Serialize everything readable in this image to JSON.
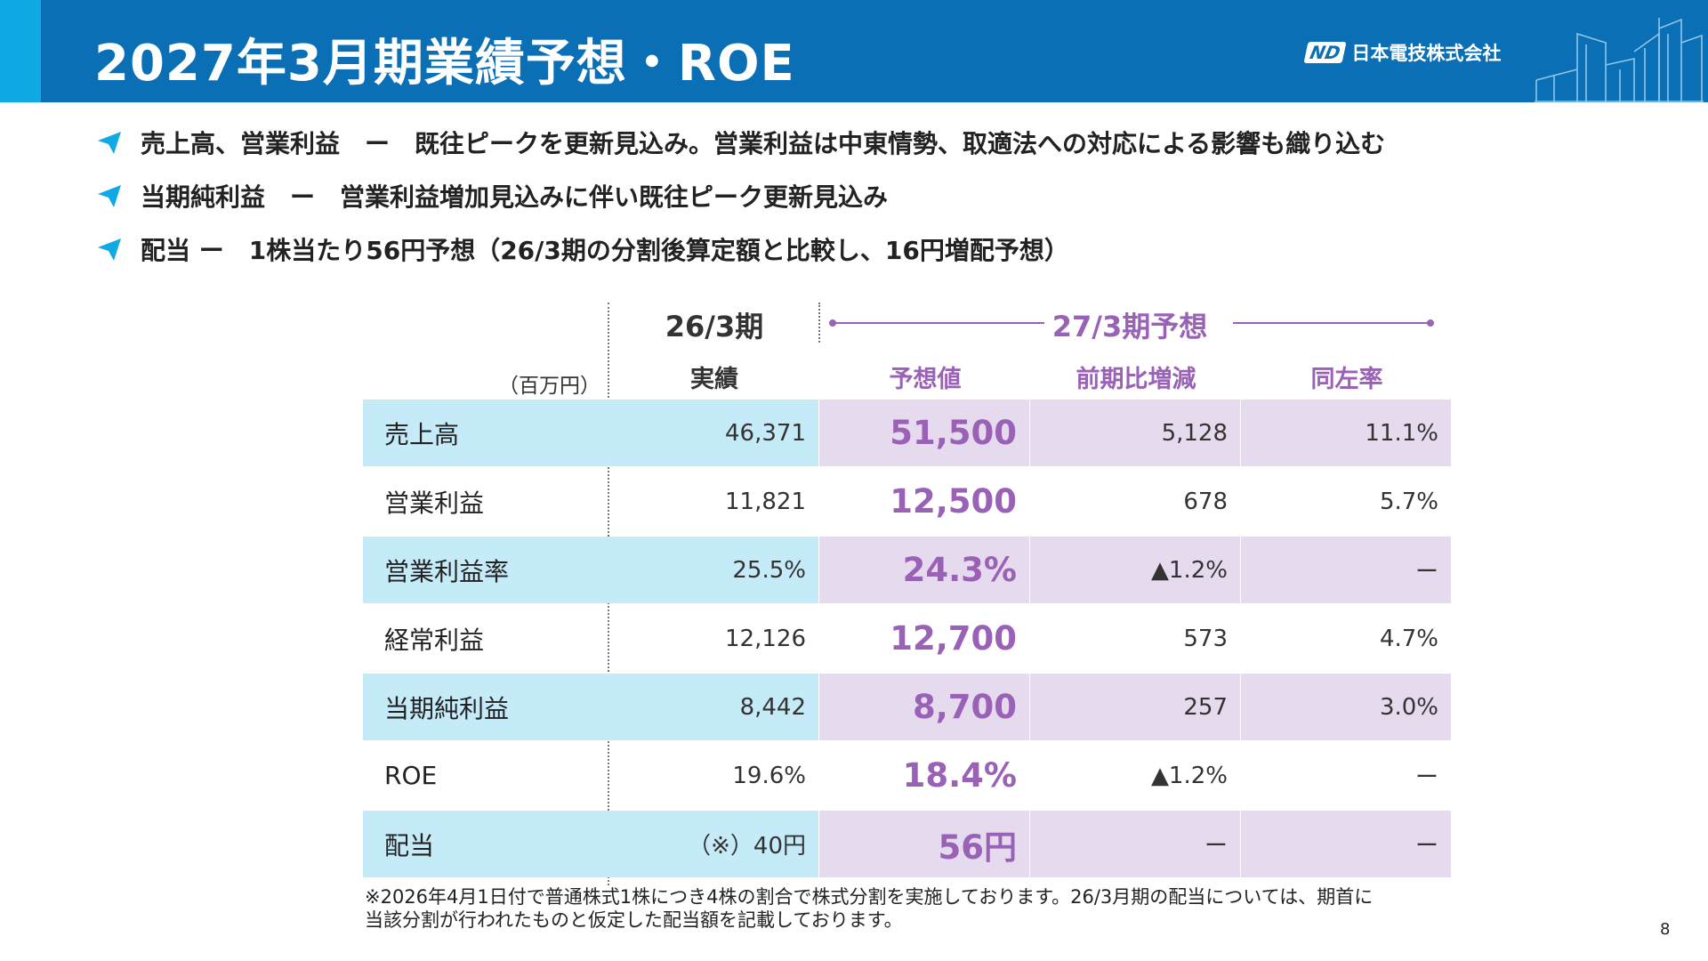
{
  "header": {
    "title": "2027年3月期業績予想・ROE",
    "logo_mark": "ND",
    "logo_text": "日本電技株式会社"
  },
  "bullets": [
    "売上高、営業利益　ー　既往ピークを更新見込み。営業利益は中東情勢、取適法への対応による影響も織り込む",
    "当期純利益　ー　営業利益増加見込みに伴い既往ピーク更新見込み",
    "配当 ー　1株当たり56円予想（26/3期の分割後算定額と比較し、16円増配予想）"
  ],
  "table": {
    "unit": "（百万円）",
    "prev_period": "26/3期",
    "prev_sub": "実績",
    "forecast_period": "27/3期予想",
    "forecast_sub": "予想値",
    "diff_sub": "前期比増減",
    "rate_sub": "同左率",
    "rows": [
      {
        "label": "売上高",
        "prev": "46,371",
        "forecast": "51,500",
        "diff": "5,128",
        "rate": "11.1%"
      },
      {
        "label": "営業利益",
        "prev": "11,821",
        "forecast": "12,500",
        "diff": "678",
        "rate": "5.7%"
      },
      {
        "label": "営業利益率",
        "prev": "25.5%",
        "forecast": "24.3%",
        "diff": "▲1.2%",
        "rate": "ー"
      },
      {
        "label": "経常利益",
        "prev": "12,126",
        "forecast": "12,700",
        "diff": "573",
        "rate": "4.7%"
      },
      {
        "label": "当期純利益",
        "prev": "8,442",
        "forecast": "8,700",
        "diff": "257",
        "rate": "3.0%"
      },
      {
        "label": "ROE",
        "prev": "19.6%",
        "forecast": "18.4%",
        "diff": "▲1.2%",
        "rate": "ー"
      },
      {
        "label": "配当",
        "prev": "（※）40円",
        "forecast": "56円",
        "diff": "ー",
        "rate": "ー"
      }
    ]
  },
  "note": {
    "line1": "※2026年4月1日付で普通株式1株につき4株の割合で株式分割を実施しております。26/3月期の配当については、期首に",
    "line2": "当該分割が行われたものと仮定した配当額を記載しております。"
  },
  "page_number": "8",
  "colors": {
    "header_bg": "#0a6fb5",
    "header_accent": "#0fa9e6",
    "forecast_purple": "#9a62b6",
    "label_row_blue": "#c6ebf8",
    "forecast_row_lavender": "#e6dbee"
  }
}
